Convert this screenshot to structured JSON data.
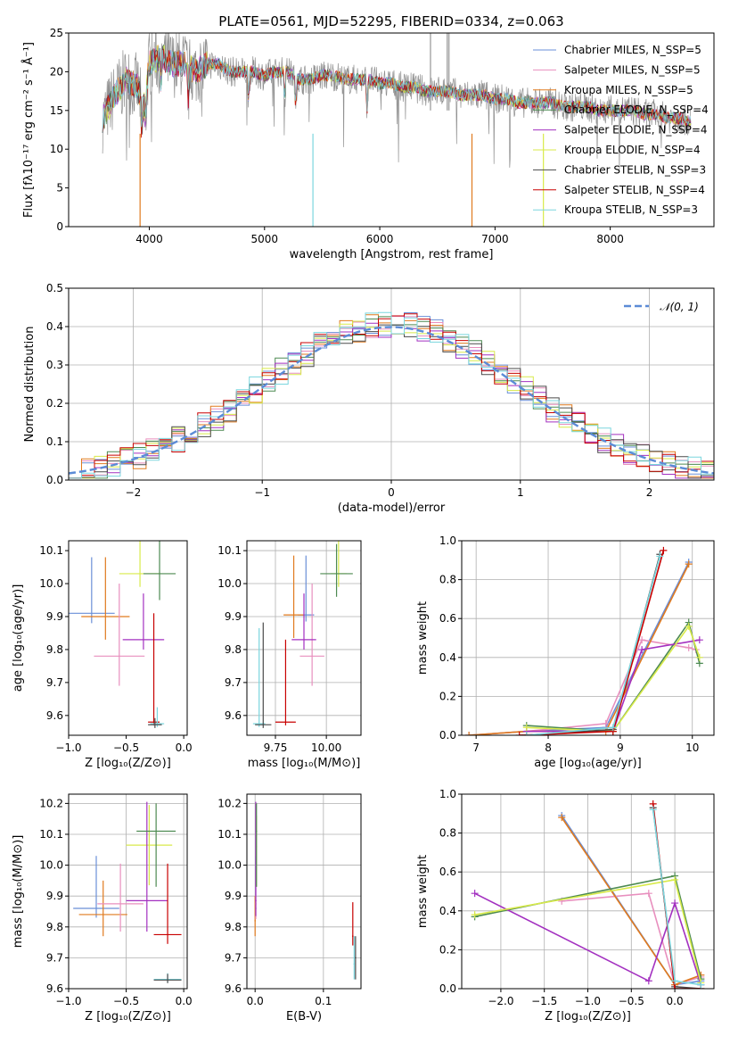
{
  "chart_data": [
    {
      "id": "spectrum",
      "type": "line",
      "title": "PLATE=0561, MJD=52295, FIBERID=0334, z=0.063",
      "xlabel": "wavelength [Angstrom, rest frame]",
      "ylabel": "Flux [fλ10⁻¹⁷ erg cm⁻² s⁻¹ Å⁻¹]",
      "xlim": [
        3300,
        8900
      ],
      "ylim": [
        0,
        25
      ],
      "xticks": [
        4000,
        5000,
        6000,
        7000,
        8000
      ],
      "yticks": [
        0,
        5,
        10,
        15,
        20,
        25
      ],
      "grid": false,
      "legend_position": "top-right",
      "data_trace": {
        "x": [
          3600,
          3700,
          3800,
          3900,
          3950,
          4000,
          4100,
          4200,
          4300,
          4400,
          4500,
          4600,
          4700,
          4800,
          4900,
          5000,
          5100,
          5200,
          5300,
          5400,
          5500,
          5600,
          5700,
          5800,
          5900,
          6000,
          6100,
          6200,
          6300,
          6400,
          6500,
          6600,
          6700,
          6800,
          6900,
          7000,
          7100,
          7200,
          7300,
          7400,
          7500,
          7600,
          7700,
          7800,
          7900,
          8000,
          8100,
          8200,
          8300,
          8400,
          8500,
          8600,
          8700
        ],
        "y": [
          14,
          17,
          19,
          18,
          15,
          21,
          22,
          21,
          21,
          20,
          21,
          21,
          20,
          20,
          20,
          19.5,
          20,
          20,
          19,
          19,
          19.5,
          19.5,
          19,
          19,
          19,
          18.5,
          18.5,
          18,
          18,
          17.5,
          17.5,
          17.5,
          17,
          17,
          17,
          16.5,
          16.5,
          16,
          16,
          16,
          16,
          15.5,
          15.5,
          15.5,
          15,
          15,
          15,
          15,
          14.5,
          14.5,
          14,
          14,
          13.5
        ]
      },
      "series": [
        {
          "name": "Chabrier MILES, N_SSP=5"
        },
        {
          "name": "Salpeter MILES, N_SSP=5"
        },
        {
          "name": "Kroupa MILES, N_SSP=5"
        },
        {
          "name": "Chabrier ELODIE, N_SSP=4"
        },
        {
          "name": "Salpeter ELODIE, N_SSP=4"
        },
        {
          "name": "Kroupa ELODIE, N_SSP=4"
        },
        {
          "name": "Chabrier STELIB, N_SSP=3"
        },
        {
          "name": "Salpeter STELIB, N_SSP=4"
        },
        {
          "name": "Kroupa STELIB, N_SSP=3"
        }
      ]
    },
    {
      "id": "residuals",
      "type": "line",
      "xlabel": "(data-model)/error",
      "ylabel": "Normed distribution",
      "xlim": [
        -2.5,
        2.5
      ],
      "ylim": [
        0,
        0.5
      ],
      "xticks": [
        -2,
        -1,
        0,
        1,
        2
      ],
      "yticks": [
        0.0,
        0.1,
        0.2,
        0.3,
        0.4,
        0.5
      ],
      "grid": true,
      "legend_position": "top-right",
      "gaussian_label": "𝒩(0, 1)",
      "bin_width": 0.1
    },
    {
      "id": "age_vs_Z",
      "type": "scatter",
      "xlabel": "Z [log₁₀(Z/Z⊙)]",
      "ylabel": "age  [log₁₀(age/yr)]",
      "xlim": [
        -1.0,
        0.03
      ],
      "ylim": [
        9.54,
        10.13
      ],
      "xticks": [
        -1.0,
        -0.5,
        0.0
      ],
      "yticks": [
        9.6,
        9.7,
        9.8,
        9.9,
        10.0,
        10.1
      ],
      "grid": false,
      "points": [
        {
          "series": 0,
          "x": -0.8,
          "y": 9.91,
          "xerr": 0.2,
          "yerr": [
            0.03,
            0.17
          ]
        },
        {
          "series": 2,
          "x": -0.68,
          "y": 9.9,
          "xerr": 0.21,
          "yerr": [
            0.07,
            0.18
          ]
        },
        {
          "series": 1,
          "x": -0.56,
          "y": 9.78,
          "xerr": 0.22,
          "yerr": [
            0.09,
            0.22
          ]
        },
        {
          "series": 5,
          "x": -0.38,
          "y": 10.03,
          "xerr": 0.18,
          "yerr": [
            0.04,
            0.1
          ]
        },
        {
          "series": 4,
          "x": -0.35,
          "y": 9.83,
          "xerr": 0.18,
          "yerr": [
            0.03,
            0.14
          ]
        },
        {
          "series": 3,
          "x": -0.21,
          "y": 10.03,
          "xerr": 0.14,
          "yerr": [
            0.08,
            0.11
          ]
        },
        {
          "series": 7,
          "x": -0.26,
          "y": 9.58,
          "xerr": 0.05,
          "yerr": [
            0.01,
            0.33
          ]
        },
        {
          "series": 8,
          "x": -0.23,
          "y": 9.575,
          "xerr": 0.06,
          "yerr": [
            0.01,
            0.05
          ]
        },
        {
          "series": 6,
          "x": -0.25,
          "y": 9.572,
          "xerr": 0.06,
          "yerr": [
            0.01,
            0.02
          ]
        }
      ]
    },
    {
      "id": "age_vs_mass",
      "type": "scatter",
      "xlabel": "mass [log₁₀(M/M⊙)]",
      "ylabel": "",
      "xlim": [
        9.61,
        10.17
      ],
      "ylim": [
        9.54,
        10.13
      ],
      "xticks": [
        9.75,
        10.0
      ],
      "xticklabels": [
        "9.75",
        "10.00"
      ],
      "yticks": [
        9.6,
        9.7,
        9.8,
        9.9,
        10.0,
        10.1
      ],
      "grid": true,
      "points": [
        {
          "series": 0,
          "x": 9.9,
          "y": 9.905,
          "xerr": 0.04,
          "yerr": [
            0.02,
            0.18
          ]
        },
        {
          "series": 2,
          "x": 9.84,
          "y": 9.905,
          "xerr": 0.05,
          "yerr": [
            0.07,
            0.18
          ]
        },
        {
          "series": 1,
          "x": 9.93,
          "y": 9.78,
          "xerr": 0.06,
          "yerr": [
            0.09,
            0.22
          ]
        },
        {
          "series": 5,
          "x": 10.06,
          "y": 10.03,
          "xerr": 0.04,
          "yerr": [
            0.04,
            0.1
          ]
        },
        {
          "series": 4,
          "x": 9.89,
          "y": 9.83,
          "xerr": 0.06,
          "yerr": [
            0.03,
            0.14
          ]
        },
        {
          "series": 3,
          "x": 10.05,
          "y": 10.03,
          "xerr": 0.08,
          "yerr": [
            0.07,
            0.09
          ]
        },
        {
          "series": 7,
          "x": 9.8,
          "y": 9.58,
          "xerr": 0.05,
          "yerr": [
            0.01,
            0.25
          ]
        },
        {
          "series": 8,
          "x": 9.67,
          "y": 9.575,
          "xerr": 0.03,
          "yerr": [
            0.01,
            0.29
          ]
        },
        {
          "series": 6,
          "x": 9.69,
          "y": 9.572,
          "xerr": 0.04,
          "yerr": [
            0.01,
            0.31
          ]
        }
      ]
    },
    {
      "id": "mass_weight_vs_age",
      "type": "line",
      "xlabel": "age  [log₁₀(age/yr)]",
      "ylabel": "mass weight",
      "xlim": [
        6.8,
        10.3
      ],
      "ylim": [
        0,
        1.0
      ],
      "xticks": [
        7,
        8,
        9,
        10
      ],
      "yticks": [
        0.0,
        0.2,
        0.4,
        0.6,
        0.8,
        1.0
      ],
      "grid": true,
      "lines": [
        {
          "series": 0,
          "x": [
            6.9,
            7.7,
            8.8,
            9.95
          ],
          "y": [
            0.0,
            0.02,
            0.04,
            0.89
          ]
        },
        {
          "series": 1,
          "x": [
            6.9,
            7.7,
            8.8,
            9.3,
            9.95,
            10.05
          ],
          "y": [
            0.0,
            0.02,
            0.06,
            0.49,
            0.45,
            0.44
          ]
        },
        {
          "series": 2,
          "x": [
            6.9,
            7.7,
            8.8,
            9.95
          ],
          "y": [
            0.0,
            0.02,
            0.02,
            0.88
          ]
        },
        {
          "series": 3,
          "x": [
            7.7,
            8.9,
            9.95,
            10.1
          ],
          "y": [
            0.05,
            0.02,
            0.58,
            0.37
          ]
        },
        {
          "series": 4,
          "x": [
            7.7,
            8.9,
            9.3,
            10.1
          ],
          "y": [
            0.02,
            0.02,
            0.44,
            0.49
          ]
        },
        {
          "series": 5,
          "x": [
            7.7,
            8.9,
            9.95,
            10.1
          ],
          "y": [
            0.04,
            0.02,
            0.56,
            0.4
          ]
        },
        {
          "series": 6,
          "x": [
            7.7,
            8.9,
            9.55
          ],
          "y": [
            0.0,
            0.03,
            0.93
          ]
        },
        {
          "series": 7,
          "x": [
            7.6,
            8.9,
            9.6
          ],
          "y": [
            0.0,
            0.02,
            0.95
          ]
        },
        {
          "series": 8,
          "x": [
            7.7,
            8.9,
            9.55
          ],
          "y": [
            0.0,
            0.04,
            0.92
          ]
        }
      ]
    },
    {
      "id": "mass_vs_Z",
      "type": "scatter",
      "xlabel": "Z [log₁₀(Z/Z⊙)]",
      "ylabel": "mass [log₁₀(M/M⊙)]",
      "xlim": [
        -1.0,
        0.03
      ],
      "ylim": [
        9.6,
        10.23
      ],
      "xticks": [
        -1.0,
        -0.5,
        0.0
      ],
      "yticks": [
        9.6,
        9.7,
        9.8,
        9.9,
        10.0,
        10.1,
        10.2
      ],
      "grid": true,
      "points": [
        {
          "series": 0,
          "x": -0.76,
          "y": 9.86,
          "xerr": 0.2,
          "yerr": [
            0.03,
            0.17
          ]
        },
        {
          "series": 2,
          "x": -0.7,
          "y": 9.84,
          "xerr": 0.21,
          "yerr": [
            0.07,
            0.11
          ]
        },
        {
          "series": 1,
          "x": -0.55,
          "y": 9.875,
          "xerr": 0.2,
          "yerr": [
            0.09,
            0.13
          ]
        },
        {
          "series": 5,
          "x": -0.3,
          "y": 10.065,
          "xerr": 0.2,
          "yerr": [
            0.13,
            0.13
          ]
        },
        {
          "series": 4,
          "x": -0.32,
          "y": 9.885,
          "xerr": 0.18,
          "yerr": [
            0.1,
            0.32
          ]
        },
        {
          "series": 3,
          "x": -0.24,
          "y": 10.11,
          "xerr": 0.17,
          "yerr": [
            0.18,
            0.09
          ]
        },
        {
          "series": 7,
          "x": -0.14,
          "y": 9.775,
          "xerr": 0.12,
          "yerr": [
            0.03,
            0.23
          ]
        },
        {
          "series": 8,
          "x": -0.14,
          "y": 9.63,
          "xerr": 0.12,
          "yerr": [
            0.01,
            0.02
          ]
        },
        {
          "series": 6,
          "x": -0.14,
          "y": 9.628,
          "xerr": 0.12,
          "yerr": [
            0.01,
            0.02
          ]
        }
      ]
    },
    {
      "id": "mass_vs_ebv",
      "type": "scatter",
      "xlabel": "E(B-V)",
      "ylabel": "",
      "xlim": [
        -0.012,
        0.155
      ],
      "ylim": [
        9.6,
        10.23
      ],
      "xticks": [
        0.0,
        0.1
      ],
      "yticks": [
        9.6,
        9.7,
        9.8,
        9.9,
        10.0,
        10.1,
        10.2
      ],
      "grid": true,
      "points": [
        {
          "series": 0,
          "x": 0.001,
          "y": 9.86,
          "xerr": 0.001,
          "yerr": [
            0.03,
            0.17
          ]
        },
        {
          "series": 2,
          "x": 0.0,
          "y": 9.82,
          "xerr": 0.001,
          "yerr": [
            0.05,
            0.08
          ]
        },
        {
          "series": 1,
          "x": 0.001,
          "y": 9.875,
          "xerr": 0.001,
          "yerr": [
            0.05,
            0.11
          ]
        },
        {
          "series": 5,
          "x": 0.002,
          "y": 10.06,
          "xerr": 0.001,
          "yerr": [
            0.13,
            0.1
          ]
        },
        {
          "series": 4,
          "x": 0.001,
          "y": 9.885,
          "xerr": 0.001,
          "yerr": [
            0.05,
            0.32
          ]
        },
        {
          "series": 3,
          "x": 0.002,
          "y": 10.11,
          "xerr": 0.001,
          "yerr": [
            0.18,
            0.09
          ]
        },
        {
          "series": 7,
          "x": 0.143,
          "y": 9.77,
          "xerr": 0.001,
          "yerr": [
            0.03,
            0.11
          ]
        },
        {
          "series": 8,
          "x": 0.145,
          "y": 9.68,
          "xerr": 0.001,
          "yerr": [
            0.05,
            0.09
          ]
        },
        {
          "series": 6,
          "x": 0.147,
          "y": 9.7,
          "xerr": 0.001,
          "yerr": [
            0.07,
            0.07
          ]
        }
      ]
    },
    {
      "id": "mass_weight_vs_Z",
      "type": "line",
      "xlabel": "Z [log₁₀(Z/Z⊙)]",
      "ylabel": "mass weight",
      "xlim": [
        -2.45,
        0.45
      ],
      "ylim": [
        0,
        1.0
      ],
      "xticks": [
        -2.0,
        -1.5,
        -1.0,
        -0.5,
        0.0
      ],
      "yticks": [
        0.0,
        0.2,
        0.4,
        0.6,
        0.8,
        1.0
      ],
      "grid": true,
      "lines": [
        {
          "series": 0,
          "x": [
            -1.3,
            0.0,
            0.3
          ],
          "y": [
            0.89,
            0.02,
            0.04
          ]
        },
        {
          "series": 1,
          "x": [
            -1.3,
            -0.3,
            0.0,
            0.3
          ],
          "y": [
            0.45,
            0.49,
            0.02,
            0.06
          ]
        },
        {
          "series": 2,
          "x": [
            -1.3,
            0.0,
            0.3
          ],
          "y": [
            0.88,
            0.02,
            0.07
          ]
        },
        {
          "series": 3,
          "x": [
            -2.3,
            0.0,
            0.3
          ],
          "y": [
            0.37,
            0.58,
            0.05
          ]
        },
        {
          "series": 4,
          "x": [
            -2.3,
            -0.3,
            0.0,
            0.3
          ],
          "y": [
            0.49,
            0.04,
            0.44,
            0.02
          ]
        },
        {
          "series": 5,
          "x": [
            -2.3,
            0.0,
            0.3
          ],
          "y": [
            0.38,
            0.56,
            0.03
          ]
        },
        {
          "series": 6,
          "x": [
            -0.25,
            0.0,
            0.3
          ],
          "y": [
            0.93,
            0.01,
            0.0
          ]
        },
        {
          "series": 7,
          "x": [
            -0.25,
            0.0,
            0.3
          ],
          "y": [
            0.95,
            0.0,
            0.0
          ]
        },
        {
          "series": 8,
          "x": [
            -0.25,
            0.0,
            0.3
          ],
          "y": [
            0.92,
            0.04,
            0.02
          ]
        }
      ]
    }
  ],
  "series_colors": [
    "#6a8fd8",
    "#e88fbe",
    "#e07a1e",
    "#4d8a52",
    "#a330c0",
    "#d8ea4a",
    "#4a4a4a",
    "#c80000",
    "#7ad6de"
  ],
  "data_color": "#909090",
  "gaussian_color": "#5b8bd6"
}
